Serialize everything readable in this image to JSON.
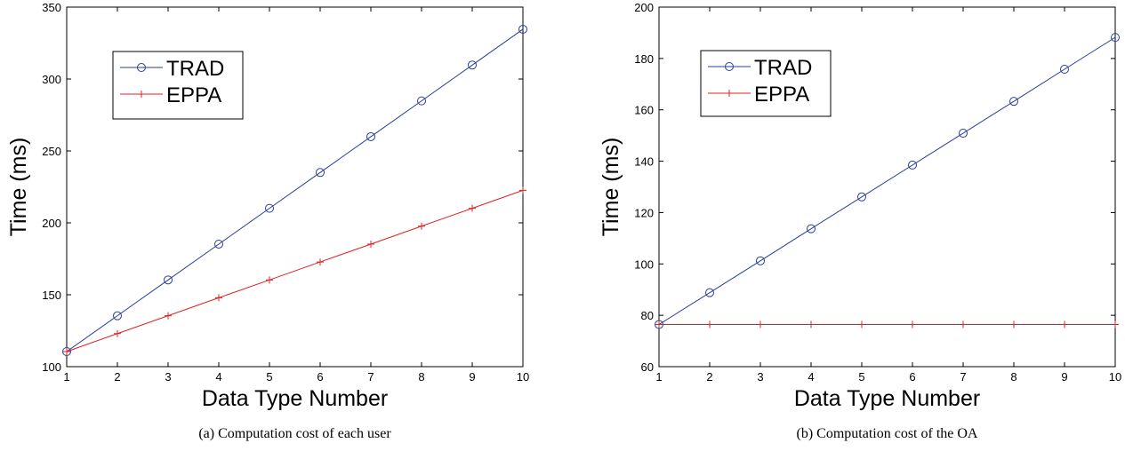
{
  "chart_data": [
    {
      "type": "line",
      "caption": "(a) Computation cost of each user",
      "xlabel": "Data Type Number",
      "ylabel": "Time (ms)",
      "xlim": [
        1,
        10
      ],
      "ylim": [
        100,
        350
      ],
      "xticks": [
        1,
        2,
        3,
        4,
        5,
        6,
        7,
        8,
        9,
        10
      ],
      "yticks": [
        100,
        150,
        200,
        250,
        300,
        350
      ],
      "grid": false,
      "legend_position": "top-left",
      "x": [
        1,
        2,
        3,
        4,
        5,
        6,
        7,
        8,
        9,
        10
      ],
      "series": [
        {
          "name": "TRAD",
          "color": "#2a3e9c",
          "marker": "circle",
          "values": [
            110.5,
            135.4,
            160.3,
            185.2,
            210.1,
            235.0,
            259.9,
            284.8,
            309.7,
            334.6
          ]
        },
        {
          "name": "EPPA",
          "color": "#e02020",
          "marker": "plus",
          "values": [
            110.5,
            123.0,
            135.4,
            147.9,
            160.3,
            172.8,
            185.2,
            197.7,
            210.1,
            222.6
          ]
        }
      ]
    },
    {
      "type": "line",
      "caption": "(b) Computation cost of the OA",
      "xlabel": "Data Type Number",
      "ylabel": "Time (ms)",
      "xlim": [
        1,
        10
      ],
      "ylim": [
        60,
        200
      ],
      "xticks": [
        1,
        2,
        3,
        4,
        5,
        6,
        7,
        8,
        9,
        10
      ],
      "yticks": [
        60,
        80,
        100,
        120,
        140,
        160,
        180,
        200
      ],
      "grid": false,
      "legend_position": "top-left",
      "x": [
        1,
        2,
        3,
        4,
        5,
        6,
        7,
        8,
        9,
        10
      ],
      "series": [
        {
          "name": "TRAD",
          "color": "#2a3e9c",
          "marker": "circle",
          "values": [
            76.4,
            88.8,
            101.2,
            113.7,
            126.1,
            138.5,
            150.9,
            163.3,
            175.8,
            188.2
          ]
        },
        {
          "name": "EPPA",
          "color": "#e02020",
          "marker": "plus",
          "values": [
            76.4,
            76.4,
            76.4,
            76.4,
            76.4,
            76.4,
            76.4,
            76.4,
            76.4,
            76.4
          ]
        }
      ]
    }
  ]
}
